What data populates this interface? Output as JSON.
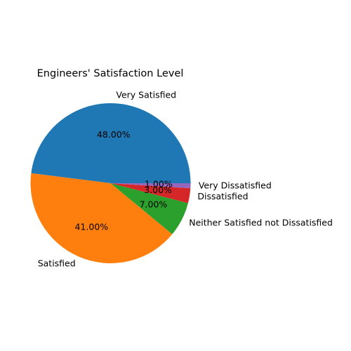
{
  "chart_data": {
    "type": "pie",
    "title": "Engineers' Satisfaction Level",
    "categories": [
      "Very Satisfied",
      "Satisfied",
      "Neither Satisfied not Dissatisfied",
      "Dissatisfied",
      "Very Dissatisfied"
    ],
    "values": [
      48,
      41,
      7,
      3,
      1
    ],
    "percent_labels": [
      "48.00%",
      "41.00%",
      "7.00%",
      "3.00%",
      "1.00%"
    ],
    "colors": [
      "#1f77b4",
      "#ff7f0e",
      "#2ca02c",
      "#d62728",
      "#9467bd"
    ],
    "start_angle_deg": 0,
    "direction": "counterclockwise"
  }
}
